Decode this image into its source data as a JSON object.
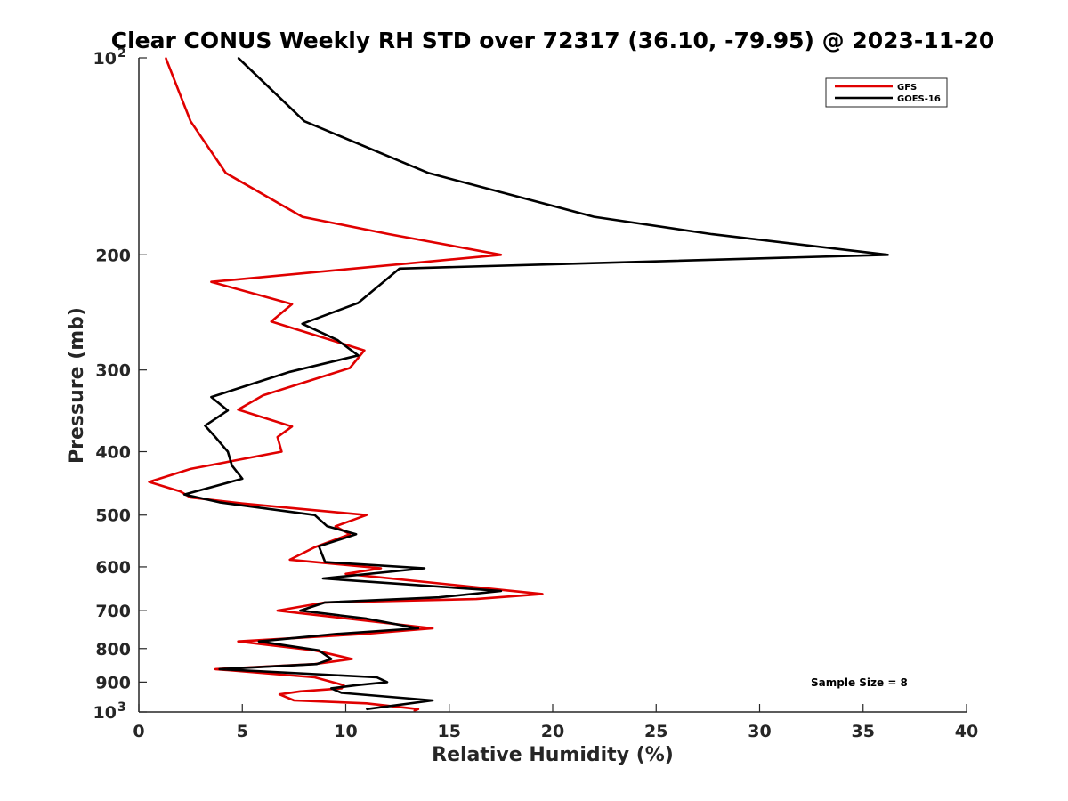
{
  "chart_data": {
    "type": "line",
    "title": "Clear CONUS Weekly RH STD over 72317 (36.10, -79.95) @ 2023-11-20",
    "xlabel": "Relative Humidity (%)",
    "ylabel": "Pressure (mb)",
    "xlim": [
      0,
      40
    ],
    "ylim": [
      100,
      1000
    ],
    "y_scale": "log",
    "y_reversed": true,
    "grid": false,
    "legend_position": "top-right",
    "x_ticks": [
      "0",
      "5",
      "10",
      "15",
      "20",
      "25",
      "30",
      "35",
      "40"
    ],
    "y_ticks": [
      {
        "value": 100,
        "label": "10",
        "sup": "2"
      },
      {
        "value": 200,
        "label": "200",
        "sup": ""
      },
      {
        "value": 300,
        "label": "300",
        "sup": ""
      },
      {
        "value": 400,
        "label": "400",
        "sup": ""
      },
      {
        "value": 500,
        "label": "500",
        "sup": ""
      },
      {
        "value": 600,
        "label": "600",
        "sup": ""
      },
      {
        "value": 700,
        "label": "700",
        "sup": ""
      },
      {
        "value": 800,
        "label": "800",
        "sup": ""
      },
      {
        "value": 900,
        "label": "900",
        "sup": ""
      },
      {
        "value": 1000,
        "label": "10",
        "sup": "3"
      }
    ],
    "annotation": "Sample Size = 8",
    "series": [
      {
        "name": "GFS",
        "color": "#e00000",
        "points": [
          [
            1.3,
            100
          ],
          [
            2.5,
            125
          ],
          [
            4.2,
            150
          ],
          [
            7.9,
            175
          ],
          [
            12.1,
            186
          ],
          [
            17.5,
            200
          ],
          [
            3.5,
            220
          ],
          [
            7.4,
            238
          ],
          [
            6.4,
            253
          ],
          [
            10.9,
            280
          ],
          [
            10.2,
            298
          ],
          [
            6.0,
            328
          ],
          [
            4.8,
            345
          ],
          [
            7.4,
            366
          ],
          [
            6.7,
            380
          ],
          [
            6.9,
            400
          ],
          [
            2.5,
            425
          ],
          [
            0.5,
            445
          ],
          [
            2.0,
            460
          ],
          [
            2.5,
            470
          ],
          [
            5.0,
            480
          ],
          [
            11.0,
            500
          ],
          [
            9.5,
            520
          ],
          [
            10.2,
            535
          ],
          [
            8.5,
            560
          ],
          [
            7.3,
            585
          ],
          [
            11.7,
            603
          ],
          [
            10.0,
            615
          ],
          [
            19.5,
            660
          ],
          [
            16.3,
            672
          ],
          [
            9.0,
            680
          ],
          [
            6.7,
            700
          ],
          [
            14.2,
            745
          ],
          [
            10.8,
            760
          ],
          [
            4.8,
            780
          ],
          [
            8.5,
            805
          ],
          [
            10.3,
            830
          ],
          [
            8.5,
            845
          ],
          [
            3.7,
            860
          ],
          [
            8.5,
            885
          ],
          [
            9.9,
            910
          ],
          [
            9.8,
            920
          ],
          [
            7.8,
            930
          ],
          [
            6.8,
            940
          ],
          [
            7.5,
            960
          ],
          [
            11.0,
            970
          ],
          [
            13.5,
            990
          ],
          [
            13.3,
            996
          ]
        ]
      },
      {
        "name": "GOES-16",
        "color": "#000000",
        "points": [
          [
            4.8,
            100
          ],
          [
            8.0,
            125
          ],
          [
            14.0,
            150
          ],
          [
            22.0,
            175
          ],
          [
            27.7,
            186
          ],
          [
            36.2,
            200
          ],
          [
            12.6,
            210
          ],
          [
            10.6,
            237
          ],
          [
            7.9,
            255
          ],
          [
            9.6,
            270
          ],
          [
            10.6,
            285
          ],
          [
            7.3,
            302
          ],
          [
            3.5,
            330
          ],
          [
            4.3,
            346
          ],
          [
            3.2,
            365
          ],
          [
            3.7,
            380
          ],
          [
            4.3,
            400
          ],
          [
            4.5,
            420
          ],
          [
            5.0,
            440
          ],
          [
            2.2,
            465
          ],
          [
            3.9,
            478
          ],
          [
            8.5,
            500
          ],
          [
            9.1,
            520
          ],
          [
            10.5,
            535
          ],
          [
            8.7,
            558
          ],
          [
            9.0,
            590
          ],
          [
            13.8,
            603
          ],
          [
            8.9,
            625
          ],
          [
            17.5,
            653
          ],
          [
            14.5,
            668
          ],
          [
            9.0,
            680
          ],
          [
            7.8,
            700
          ],
          [
            11.0,
            720
          ],
          [
            13.5,
            745
          ],
          [
            9.5,
            760
          ],
          [
            5.8,
            780
          ],
          [
            8.7,
            805
          ],
          [
            9.3,
            830
          ],
          [
            8.6,
            845
          ],
          [
            3.9,
            860
          ],
          [
            11.5,
            885
          ],
          [
            12.0,
            900
          ],
          [
            10.5,
            910
          ],
          [
            9.3,
            920
          ],
          [
            9.8,
            935
          ],
          [
            14.2,
            960
          ],
          [
            11.0,
            990
          ]
        ]
      }
    ]
  }
}
